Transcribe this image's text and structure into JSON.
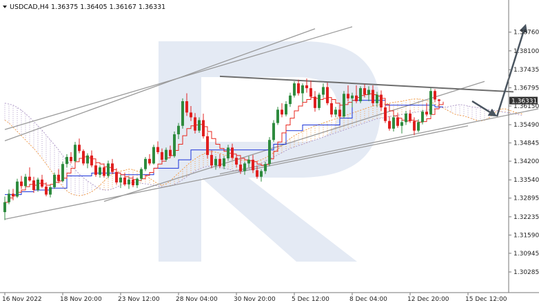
{
  "header": {
    "symbol": "USDCAD,H4",
    "ohlc": "1.36375 1.36405 1.36167 1.36331",
    "menu_icon": "triangle-down-icon"
  },
  "current_price": "1.36331",
  "watermark_icon": "r-logo-watermark",
  "colors": {
    "bull": "#2e8b3e",
    "bear": "#e02020",
    "tenkan": "#e8261c",
    "kijun": "#1830d8",
    "cloud_up": "#f2a050",
    "cloud_down": "#b19cc9",
    "trend": "#9a9a9a",
    "resistance": "#6e6e6e",
    "arrow": "#4a5560",
    "watermark": "#dfe6f2",
    "price_box": "#333333"
  },
  "chart_data": {
    "type": "candlestick",
    "y_ticks": [
      "1.38760",
      "1.38100",
      "1.37435",
      "1.36795",
      "1.36150",
      "1.35490",
      "1.34845",
      "1.34200",
      "1.33540",
      "1.32895",
      "1.32235",
      "1.31590",
      "1.30945",
      "1.30285"
    ],
    "x_ticks": [
      "16 Nov 2022",
      "18 Nov 20:00",
      "23 Nov 12:00",
      "28 Nov 04:00",
      "30 Nov 20:00",
      "5 Dec 12:00",
      "8 Dec 04:00",
      "12 Dec 20:00",
      "15 Dec 12:00"
    ],
    "ylim": [
      1.30285,
      1.3941
    ],
    "n_bars": 120,
    "x_tick_bars": [
      0,
      14,
      28,
      42,
      56,
      70,
      84,
      98,
      112
    ],
    "candles": [
      [
        1.324,
        1.3295,
        1.3212,
        1.3275
      ],
      [
        1.3275,
        1.332,
        1.3268,
        1.3305
      ],
      [
        1.3305,
        1.3322,
        1.3282,
        1.3295
      ],
      [
        1.3295,
        1.3358,
        1.329,
        1.3348
      ],
      [
        1.3348,
        1.3368,
        1.3322,
        1.3332
      ],
      [
        1.3332,
        1.3375,
        1.3325,
        1.3365
      ],
      [
        1.3365,
        1.3398,
        1.3348,
        1.3352
      ],
      [
        1.3352,
        1.3365,
        1.3308,
        1.3318
      ],
      [
        1.3318,
        1.3362,
        1.3312,
        1.3355
      ],
      [
        1.3355,
        1.3372,
        1.3325,
        1.333
      ],
      [
        1.333,
        1.3345,
        1.3296,
        1.3302
      ],
      [
        1.3302,
        1.3335,
        1.3292,
        1.3328
      ],
      [
        1.3328,
        1.338,
        1.3322,
        1.3372
      ],
      [
        1.3372,
        1.3392,
        1.3342,
        1.335
      ],
      [
        1.335,
        1.3418,
        1.3345,
        1.341
      ],
      [
        1.341,
        1.3445,
        1.3398,
        1.3435
      ],
      [
        1.3435,
        1.3452,
        1.3412,
        1.342
      ],
      [
        1.342,
        1.3488,
        1.3415,
        1.3478
      ],
      [
        1.3478,
        1.35,
        1.3448,
        1.3456
      ],
      [
        1.3456,
        1.3462,
        1.3405,
        1.3412
      ],
      [
        1.3412,
        1.3448,
        1.3395,
        1.344
      ],
      [
        1.344,
        1.3458,
        1.3398,
        1.3405
      ],
      [
        1.3405,
        1.3418,
        1.3365,
        1.3372
      ],
      [
        1.3372,
        1.3405,
        1.3362,
        1.3398
      ],
      [
        1.3398,
        1.3412,
        1.3362,
        1.3368
      ],
      [
        1.3368,
        1.3422,
        1.336,
        1.3412
      ],
      [
        1.3412,
        1.3428,
        1.3375,
        1.3382
      ],
      [
        1.3382,
        1.3395,
        1.3338,
        1.3345
      ],
      [
        1.3345,
        1.3372,
        1.3325,
        1.3362
      ],
      [
        1.3362,
        1.3378,
        1.3332,
        1.3338
      ],
      [
        1.3338,
        1.3365,
        1.3322,
        1.3355
      ],
      [
        1.3355,
        1.3368,
        1.3328,
        1.3335
      ],
      [
        1.3335,
        1.3362,
        1.3325,
        1.3358
      ],
      [
        1.3358,
        1.3398,
        1.3352,
        1.3392
      ],
      [
        1.3392,
        1.3435,
        1.3385,
        1.3428
      ],
      [
        1.3428,
        1.3445,
        1.3405,
        1.3412
      ],
      [
        1.3412,
        1.3478,
        1.3408,
        1.347
      ],
      [
        1.347,
        1.349,
        1.3445,
        1.3452
      ],
      [
        1.3452,
        1.3465,
        1.3418,
        1.3425
      ],
      [
        1.3425,
        1.3468,
        1.3418,
        1.346
      ],
      [
        1.346,
        1.3475,
        1.3432,
        1.3438
      ],
      [
        1.3438,
        1.3525,
        1.3432,
        1.3515
      ],
      [
        1.3515,
        1.3555,
        1.3498,
        1.3545
      ],
      [
        1.3545,
        1.3642,
        1.3535,
        1.3632
      ],
      [
        1.3632,
        1.366,
        1.358,
        1.3592
      ],
      [
        1.3592,
        1.3615,
        1.3562,
        1.3575
      ],
      [
        1.3575,
        1.359,
        1.3518,
        1.3528
      ],
      [
        1.3528,
        1.3575,
        1.352,
        1.3565
      ],
      [
        1.3565,
        1.3588,
        1.35,
        1.3508
      ],
      [
        1.3508,
        1.3522,
        1.343,
        1.3442
      ],
      [
        1.3442,
        1.3458,
        1.3395,
        1.3405
      ],
      [
        1.3405,
        1.3438,
        1.339,
        1.3428
      ],
      [
        1.3428,
        1.3445,
        1.3395,
        1.3402
      ],
      [
        1.3402,
        1.3438,
        1.3392,
        1.343
      ],
      [
        1.343,
        1.3478,
        1.3422,
        1.3468
      ],
      [
        1.3468,
        1.3482,
        1.3425,
        1.3432
      ],
      [
        1.3432,
        1.3445,
        1.3398,
        1.3408
      ],
      [
        1.3408,
        1.3428,
        1.3375,
        1.3385
      ],
      [
        1.3385,
        1.3418,
        1.3372,
        1.3412
      ],
      [
        1.3412,
        1.3438,
        1.3398,
        1.3425
      ],
      [
        1.3425,
        1.3442,
        1.3378,
        1.3388
      ],
      [
        1.3388,
        1.3402,
        1.3358,
        1.3365
      ],
      [
        1.3365,
        1.3392,
        1.3348,
        1.3385
      ],
      [
        1.3385,
        1.3418,
        1.3375,
        1.341
      ],
      [
        1.341,
        1.3505,
        1.3402,
        1.3495
      ],
      [
        1.3495,
        1.3565,
        1.3488,
        1.3555
      ],
      [
        1.3555,
        1.3612,
        1.3548,
        1.3602
      ],
      [
        1.3602,
        1.3625,
        1.3575,
        1.3585
      ],
      [
        1.3585,
        1.3632,
        1.3578,
        1.3622
      ],
      [
        1.3622,
        1.3662,
        1.3612,
        1.3652
      ],
      [
        1.3652,
        1.3702,
        1.3645,
        1.3695
      ],
      [
        1.3695,
        1.3708,
        1.3652,
        1.366
      ],
      [
        1.366,
        1.3695,
        1.3628,
        1.3688
      ],
      [
        1.3688,
        1.3712,
        1.3662,
        1.3678
      ],
      [
        1.3678,
        1.3705,
        1.364,
        1.3648
      ],
      [
        1.3648,
        1.3668,
        1.3595,
        1.3608
      ],
      [
        1.3608,
        1.3662,
        1.36,
        1.3655
      ],
      [
        1.3655,
        1.3695,
        1.3645,
        1.3682
      ],
      [
        1.3682,
        1.3698,
        1.3618,
        1.3625
      ],
      [
        1.3625,
        1.3638,
        1.3575,
        1.3585
      ],
      [
        1.3585,
        1.3612,
        1.3575,
        1.3602
      ],
      [
        1.3602,
        1.3618,
        1.357,
        1.3578
      ],
      [
        1.3578,
        1.3668,
        1.3572,
        1.3658
      ],
      [
        1.3658,
        1.3688,
        1.3632,
        1.3642
      ],
      [
        1.3642,
        1.3662,
        1.361,
        1.3652
      ],
      [
        1.3652,
        1.3688,
        1.3625,
        1.3632
      ],
      [
        1.3632,
        1.3685,
        1.3625,
        1.3678
      ],
      [
        1.3678,
        1.3692,
        1.3645,
        1.3655
      ],
      [
        1.3655,
        1.3685,
        1.3632,
        1.3672
      ],
      [
        1.3672,
        1.3688,
        1.3615,
        1.3625
      ],
      [
        1.3625,
        1.3665,
        1.3612,
        1.3655
      ],
      [
        1.3655,
        1.367,
        1.3598,
        1.361
      ],
      [
        1.361,
        1.3622,
        1.3555,
        1.3562
      ],
      [
        1.3562,
        1.3578,
        1.3528,
        1.3535
      ],
      [
        1.3535,
        1.3582,
        1.3525,
        1.3575
      ],
      [
        1.3575,
        1.359,
        1.3538,
        1.3545
      ],
      [
        1.3545,
        1.3565,
        1.3518,
        1.3558
      ],
      [
        1.3558,
        1.3598,
        1.3548,
        1.3588
      ],
      [
        1.3588,
        1.3602,
        1.3555,
        1.3562
      ],
      [
        1.3562,
        1.3575,
        1.3512,
        1.3528
      ],
      [
        1.3528,
        1.3568,
        1.3522,
        1.3558
      ],
      [
        1.3558,
        1.3602,
        1.355,
        1.3595
      ],
      [
        1.3595,
        1.3625,
        1.3578,
        1.3585
      ],
      [
        1.3585,
        1.3678,
        1.3578,
        1.3668
      ],
      [
        1.3668,
        1.3675,
        1.3628,
        1.3638
      ],
      [
        1.3638,
        1.364,
        1.3616,
        1.3633
      ]
    ],
    "tenkan": [
      1.3275,
      1.329,
      1.3298,
      1.331,
      1.3318,
      1.333,
      1.3338,
      1.3335,
      1.3342,
      1.334,
      1.3335,
      1.3338,
      1.3345,
      1.335,
      1.336,
      1.3378,
      1.3395,
      1.3418,
      1.343,
      1.3435,
      1.3432,
      1.3428,
      1.3415,
      1.341,
      1.34,
      1.3398,
      1.339,
      1.3378,
      1.3372,
      1.3365,
      1.336,
      1.3355,
      1.3352,
      1.3358,
      1.337,
      1.338,
      1.3395,
      1.341,
      1.342,
      1.3432,
      1.344,
      1.3458,
      1.348,
      1.351,
      1.3535,
      1.3545,
      1.3548,
      1.355,
      1.3542,
      1.3525,
      1.35,
      1.348,
      1.3465,
      1.3455,
      1.3448,
      1.3445,
      1.344,
      1.343,
      1.3425,
      1.3422,
      1.3418,
      1.341,
      1.3405,
      1.3408,
      1.3428,
      1.3455,
      1.3488,
      1.352,
      1.3548,
      1.3572,
      1.3598,
      1.3615,
      1.3628,
      1.3638,
      1.3645,
      1.3642,
      1.3638,
      1.3642,
      1.3645,
      1.3638,
      1.3625,
      1.3618,
      1.362,
      1.3628,
      1.3635,
      1.3645,
      1.3652,
      1.3655,
      1.3658,
      1.3655,
      1.365,
      1.3642,
      1.362,
      1.3598,
      1.358,
      1.3572,
      1.3565,
      1.3562,
      1.3565,
      1.3562,
      1.3558,
      1.356,
      1.357,
      1.3585,
      1.3605,
      1.362,
      1.363
    ],
    "kijun": [
      1.3302,
      1.3302,
      1.3302,
      1.3302,
      1.3312,
      1.3312,
      1.3312,
      1.3318,
      1.3318,
      1.3318,
      1.3318,
      1.3325,
      1.3325,
      1.3325,
      1.3325,
      1.3368,
      1.3368,
      1.3368,
      1.3368,
      1.3368,
      1.3368,
      1.3378,
      1.3378,
      1.3378,
      1.3378,
      1.3378,
      1.3378,
      1.3378,
      1.3372,
      1.3372,
      1.3372,
      1.3372,
      1.3372,
      1.3372,
      1.3372,
      1.3372,
      1.3395,
      1.3395,
      1.3395,
      1.3395,
      1.3395,
      1.3395,
      1.3425,
      1.3425,
      1.3425,
      1.346,
      1.346,
      1.346,
      1.346,
      1.346,
      1.346,
      1.346,
      1.346,
      1.346,
      1.346,
      1.346,
      1.346,
      1.346,
      1.346,
      1.346,
      1.346,
      1.346,
      1.346,
      1.346,
      1.346,
      1.348,
      1.348,
      1.348,
      1.3528,
      1.3528,
      1.3528,
      1.3528,
      1.3548,
      1.3548,
      1.3548,
      1.3548,
      1.3548,
      1.3548,
      1.3548,
      1.3548,
      1.3548,
      1.3572,
      1.3572,
      1.3572,
      1.3635,
      1.3635,
      1.3635,
      1.3635,
      1.3635,
      1.3635,
      1.3635,
      1.3635,
      1.3618,
      1.3618,
      1.3618,
      1.3618,
      1.3618,
      1.3618,
      1.3618,
      1.3618,
      1.3618,
      1.3618,
      1.3618,
      1.3618,
      1.3612,
      1.3612,
      1.3612
    ],
    "span_a": [
      1.3565,
      1.3555,
      1.354,
      1.3525,
      1.351,
      1.3495,
      1.348,
      1.3465,
      1.3448,
      1.343,
      1.341,
      1.339,
      1.337,
      1.335,
      1.333,
      1.3315,
      1.3305,
      1.33,
      1.3298,
      1.33,
      1.3305,
      1.3312,
      1.3322,
      1.3335,
      1.335,
      1.3365,
      1.3375,
      1.338,
      1.3385,
      1.3388,
      1.3392,
      1.339,
      1.3385,
      1.338,
      1.337,
      1.336,
      1.335,
      1.334,
      1.3335,
      1.334,
      1.335,
      1.3365,
      1.3378,
      1.3392,
      1.3405,
      1.3418,
      1.3428,
      1.3438,
      1.3445,
      1.3452,
      1.3455,
      1.3452,
      1.3448,
      1.3442,
      1.3438,
      1.3432,
      1.3428,
      1.3425,
      1.3422,
      1.342,
      1.3418,
      1.342,
      1.3425,
      1.3432,
      1.344,
      1.345,
      1.3462,
      1.3475,
      1.3488,
      1.35,
      1.351,
      1.3518,
      1.3525,
      1.3532,
      1.3538,
      1.3545,
      1.355,
      1.3555,
      1.356,
      1.3565,
      1.357,
      1.3575,
      1.358,
      1.3585,
      1.359,
      1.3595,
      1.36,
      1.3605,
      1.361,
      1.3615,
      1.3618,
      1.362,
      1.3622,
      1.3625,
      1.3628,
      1.363,
      1.3632,
      1.3635,
      1.3638,
      1.364,
      1.364,
      1.3638,
      1.3635,
      1.363,
      1.3622,
      1.3615,
      1.3608,
      1.36,
      1.3592,
      1.3585,
      1.3582,
      1.358,
      1.3575,
      1.357,
      1.3565,
      1.3562,
      1.3565,
      1.3572,
      1.3585,
      1.3598,
      1.3605,
      1.3605,
      1.36,
      1.3595,
      1.359,
      1.3588
    ],
    "span_b": [
      1.3625,
      1.3622,
      1.3618,
      1.361,
      1.36,
      1.3588,
      1.3575,
      1.356,
      1.3545,
      1.353,
      1.3512,
      1.3495,
      1.3478,
      1.346,
      1.344,
      1.3422,
      1.3405,
      1.339,
      1.3375,
      1.3362,
      1.335,
      1.334,
      1.333,
      1.3322,
      1.3318,
      1.3318,
      1.3322,
      1.3328,
      1.3335,
      1.334,
      1.3342,
      1.3345,
      1.3345,
      1.3342,
      1.334,
      1.3338,
      1.3335,
      1.3332,
      1.333,
      1.333,
      1.3332,
      1.3338,
      1.3345,
      1.3355,
      1.3365,
      1.3375,
      1.3385,
      1.3392,
      1.3398,
      1.3402,
      1.3402,
      1.34,
      1.3398,
      1.3395,
      1.3392,
      1.3388,
      1.3385,
      1.3385,
      1.3388,
      1.3392,
      1.3398,
      1.3405,
      1.3412,
      1.342,
      1.3428,
      1.3435,
      1.3442,
      1.345,
      1.3458,
      1.3465,
      1.347,
      1.3475,
      1.348,
      1.3485,
      1.349,
      1.3495,
      1.35,
      1.3505,
      1.351,
      1.3515,
      1.352,
      1.3525,
      1.353,
      1.3535,
      1.354,
      1.3545,
      1.355,
      1.3555,
      1.356,
      1.3565,
      1.357,
      1.3572,
      1.3575,
      1.3578,
      1.358,
      1.3582,
      1.3585,
      1.3588,
      1.359,
      1.3592,
      1.3595,
      1.3598,
      1.36,
      1.3602,
      1.3605,
      1.3608,
      1.361,
      1.3612,
      1.3615,
      1.3618,
      1.362,
      1.3618,
      1.3615,
      1.3612,
      1.361,
      1.3608,
      1.3605,
      1.3602,
      1.36,
      1.3598,
      1.3595,
      1.3592,
      1.359,
      1.3588,
      1.3585,
      1.3582
    ],
    "trendlines": [
      {
        "name": "channel-upper-inner",
        "from": [
          0,
          1.3532
        ],
        "to": [
          84,
          1.3895
        ]
      },
      {
        "name": "channel-upper-outer",
        "from": [
          0,
          1.3492
        ],
        "to": [
          75,
          1.3888
        ]
      },
      {
        "name": "channel-lower",
        "from": [
          0,
          1.3215
        ],
        "to": [
          112,
          1.3545
        ]
      },
      {
        "name": "channel-inner-upper",
        "from": [
          24,
          1.3278
        ],
        "to": [
          116,
          1.3702
        ]
      },
      {
        "name": "channel-inner-lower",
        "from": [
          52,
          1.3375
        ],
        "to": [
          129,
          1.3605
        ]
      },
      {
        "name": "resistance-line",
        "from": [
          52,
          1.372
        ],
        "to": [
          123,
          1.3665
        ]
      }
    ],
    "arrows": [
      {
        "name": "forecast-down-arrow",
        "from": [
          113,
          1.3632
        ],
        "to": [
          119,
          1.3578
        ]
      },
      {
        "name": "forecast-up-arrow",
        "from": [
          119,
          1.3578
        ],
        "to": [
          126,
          1.3905
        ]
      }
    ]
  }
}
